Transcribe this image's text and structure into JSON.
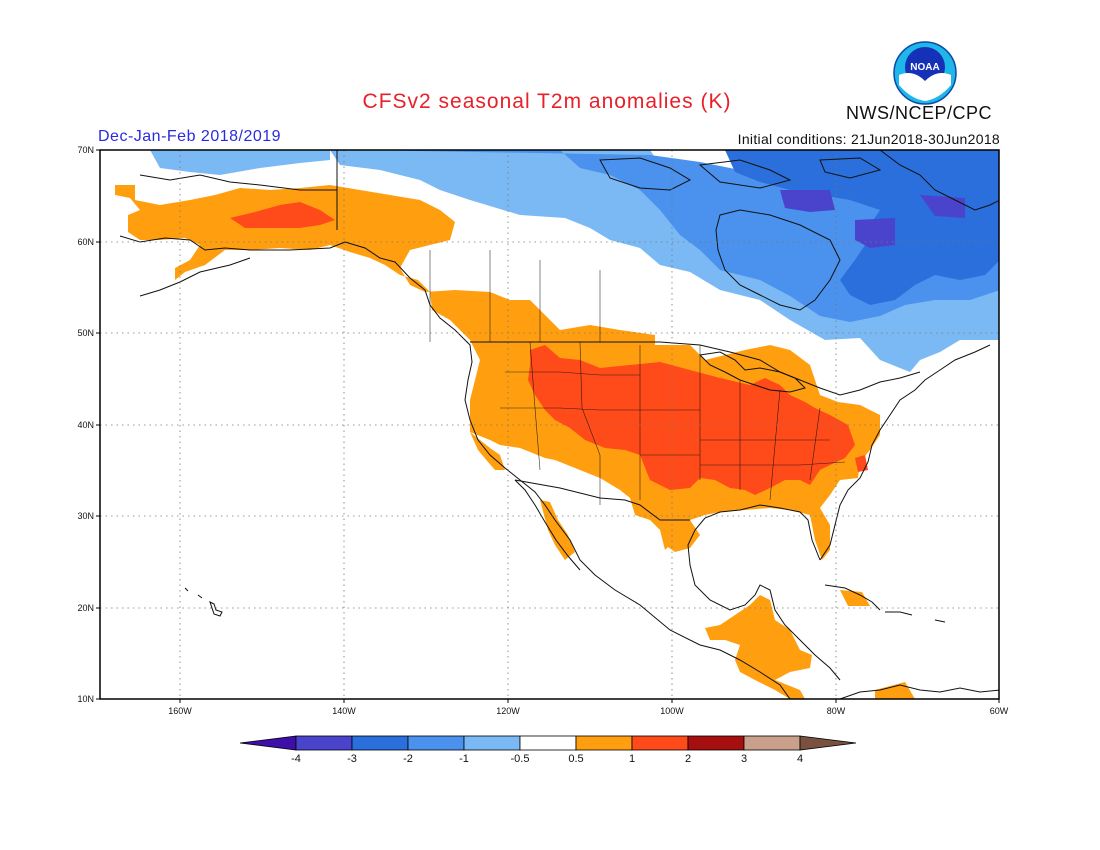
{
  "title": "CFSv2 seasonal T2m anomalies (K)",
  "season": "Dec-Jan-Feb 2018/2019",
  "initial_conditions": "Initial conditions: 21Jun2018-30Jun2018",
  "agency": "NWS/NCEP/CPC",
  "logo_text": "NOAA",
  "map": {
    "lon_range": [
      -170,
      -60
    ],
    "lat_range": [
      10,
      70
    ],
    "lon_ticks": [
      "160W",
      "140W",
      "120W",
      "100W",
      "80W",
      "60W"
    ],
    "lat_ticks": [
      "70N",
      "60N",
      "50N",
      "40N",
      "30N",
      "20N",
      "10N"
    ],
    "grid": true
  },
  "colorbar": {
    "labels": [
      "-4",
      "-3",
      "-2",
      "-1",
      "-0.5",
      "0.5",
      "1",
      "2",
      "3",
      "4"
    ],
    "colors": [
      "#3d0fa8",
      "#4a44cc",
      "#2a6fdb",
      "#4a92ee",
      "#7bb9f4",
      "#ffffff",
      "#ff9f0f",
      "#ff4a1a",
      "#a50f0f",
      "#c9a08c",
      "#7a5040"
    ]
  },
  "anomaly_regions": [
    {
      "name": "Alaska and Yukon warm",
      "class": "+0.5 to 1"
    },
    {
      "name": "Interior Alaska core",
      "class": "+1 to 2"
    },
    {
      "name": "Western and Central US warm",
      "class": "+0.5 to 1"
    },
    {
      "name": "Central and Eastern US core",
      "class": "+1 to 2"
    },
    {
      "name": "Central America warm",
      "class": "+0.5 to 1"
    },
    {
      "name": "Arctic Canada cool",
      "class": "-1 to -0.5"
    },
    {
      "name": "Northern Quebec and Labrador cool",
      "class": "-2 to -1"
    },
    {
      "name": "Baffin region core",
      "class": "-3 to -2"
    }
  ]
}
